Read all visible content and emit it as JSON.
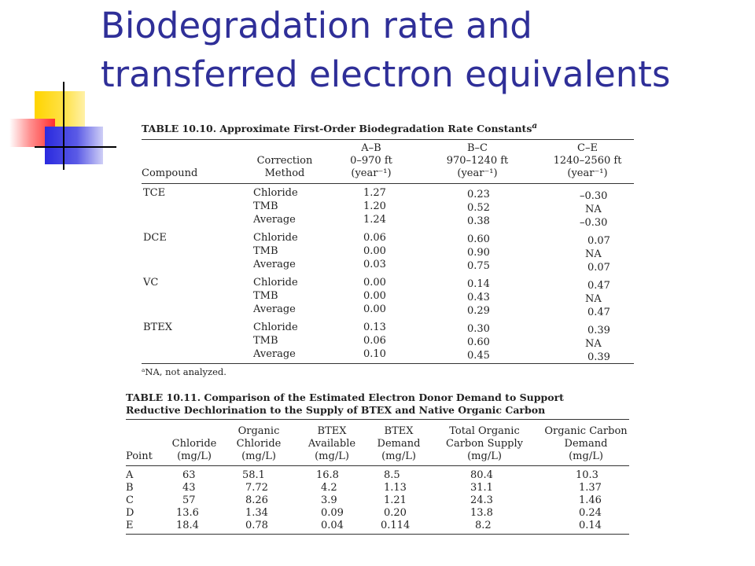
{
  "slide": {
    "title_line1": "Biodegradation rate and",
    "title_line2": "transferred electron equivalents"
  },
  "table1": {
    "caption": "TABLE 10.10. Approximate First-Order Biodegradation Rate Constants",
    "caption_sup": "a",
    "headers": {
      "compound": "Compound",
      "method1": "Correction",
      "method2": "Method",
      "ab1": "A–B",
      "ab2": "0–970 ft",
      "ab3": "(year⁻¹)",
      "bc1": "B–C",
      "bc2": "970–1240 ft",
      "bc3": "(year⁻¹)",
      "ce1": "C–E",
      "ce2": "1240–2560 ft",
      "ce3": "(year⁻¹)"
    },
    "groups": [
      {
        "compound": "TCE",
        "rows": [
          {
            "method": "Chloride",
            "ab": "1.27",
            "bc": "0.23",
            "ce": "–0.30"
          },
          {
            "method": "TMB",
            "ab": "1.20",
            "bc": "0.52",
            "ce": "NA"
          },
          {
            "method": "Average",
            "ab": "1.24",
            "bc": "0.38",
            "ce": "–0.30"
          }
        ]
      },
      {
        "compound": "DCE",
        "rows": [
          {
            "method": "Chloride",
            "ab": "0.06",
            "bc": "0.60",
            "ce": "0.07"
          },
          {
            "method": "TMB",
            "ab": "0.00",
            "bc": "0.90",
            "ce": "NA"
          },
          {
            "method": "Average",
            "ab": "0.03",
            "bc": "0.75",
            "ce": "0.07"
          }
        ]
      },
      {
        "compound": "VC",
        "rows": [
          {
            "method": "Chloride",
            "ab": "0.00",
            "bc": "0.14",
            "ce": "0.47"
          },
          {
            "method": "TMB",
            "ab": "0.00",
            "bc": "0.43",
            "ce": "NA"
          },
          {
            "method": "Average",
            "ab": "0.00",
            "bc": "0.29",
            "ce": "0.47"
          }
        ]
      },
      {
        "compound": "BTEX",
        "rows": [
          {
            "method": "Chloride",
            "ab": "0.13",
            "bc": "0.30",
            "ce": "0.39"
          },
          {
            "method": "TMB",
            "ab": "0.06",
            "bc": "0.60",
            "ce": "NA"
          },
          {
            "method": "Average",
            "ab": "0.10",
            "bc": "0.45",
            "ce": "0.39"
          }
        ]
      }
    ],
    "footnote": "ᵃNA, not analyzed."
  },
  "table2": {
    "caption_line1": "TABLE 10.11. Comparison of the Estimated Electron Donor Demand to Support",
    "caption_line2": "Reductive Dechlorination to the Supply of BTEX and Native Organic Carbon",
    "headers": {
      "point": "Point",
      "chloride1": "Chloride",
      "chloride2": "(mg/L)",
      "org1": "Organic",
      "org2": "Chloride",
      "org3": "(mg/L)",
      "btexa1": "BTEX",
      "btexa2": "Available",
      "btexa3": "(mg/L)",
      "btexd1": "BTEX",
      "btexd2": "Demand",
      "btexd3": "(mg/L)",
      "toc1": "Total Organic",
      "toc2": "Carbon Supply",
      "toc3": "(mg/L)",
      "ocd1": "Organic Carbon",
      "ocd2": "Demand",
      "ocd3": "(mg/L)"
    },
    "rows": [
      {
        "point": "A",
        "chloride": "63",
        "org": "58.1",
        "btexa": "16.8",
        "btexd": "8.5",
        "toc": "80.4",
        "ocd": "10.3"
      },
      {
        "point": "B",
        "chloride": "43",
        "org": "7.72",
        "btexa": "4.2",
        "btexd": "1.13",
        "toc": "31.1",
        "ocd": "1.37"
      },
      {
        "point": "C",
        "chloride": "57",
        "org": "8.26",
        "btexa": "3.9",
        "btexd": "1.21",
        "toc": "24.3",
        "ocd": "1.46"
      },
      {
        "point": "D",
        "chloride": "13.6",
        "org": "1.34",
        "btexa": "0.09",
        "btexd": "0.20",
        "toc": "13.8",
        "ocd": "0.24"
      },
      {
        "point": "E",
        "chloride": "18.4",
        "org": "0.78",
        "btexa": "0.04",
        "btexd": "0.114",
        "toc": "8.2",
        "ocd": "0.14"
      }
    ]
  },
  "decor": {
    "title_color": "#2f2f98",
    "yellow": "#ffd400",
    "red": "#ff2e2e",
    "blue": "#2a2adf"
  }
}
